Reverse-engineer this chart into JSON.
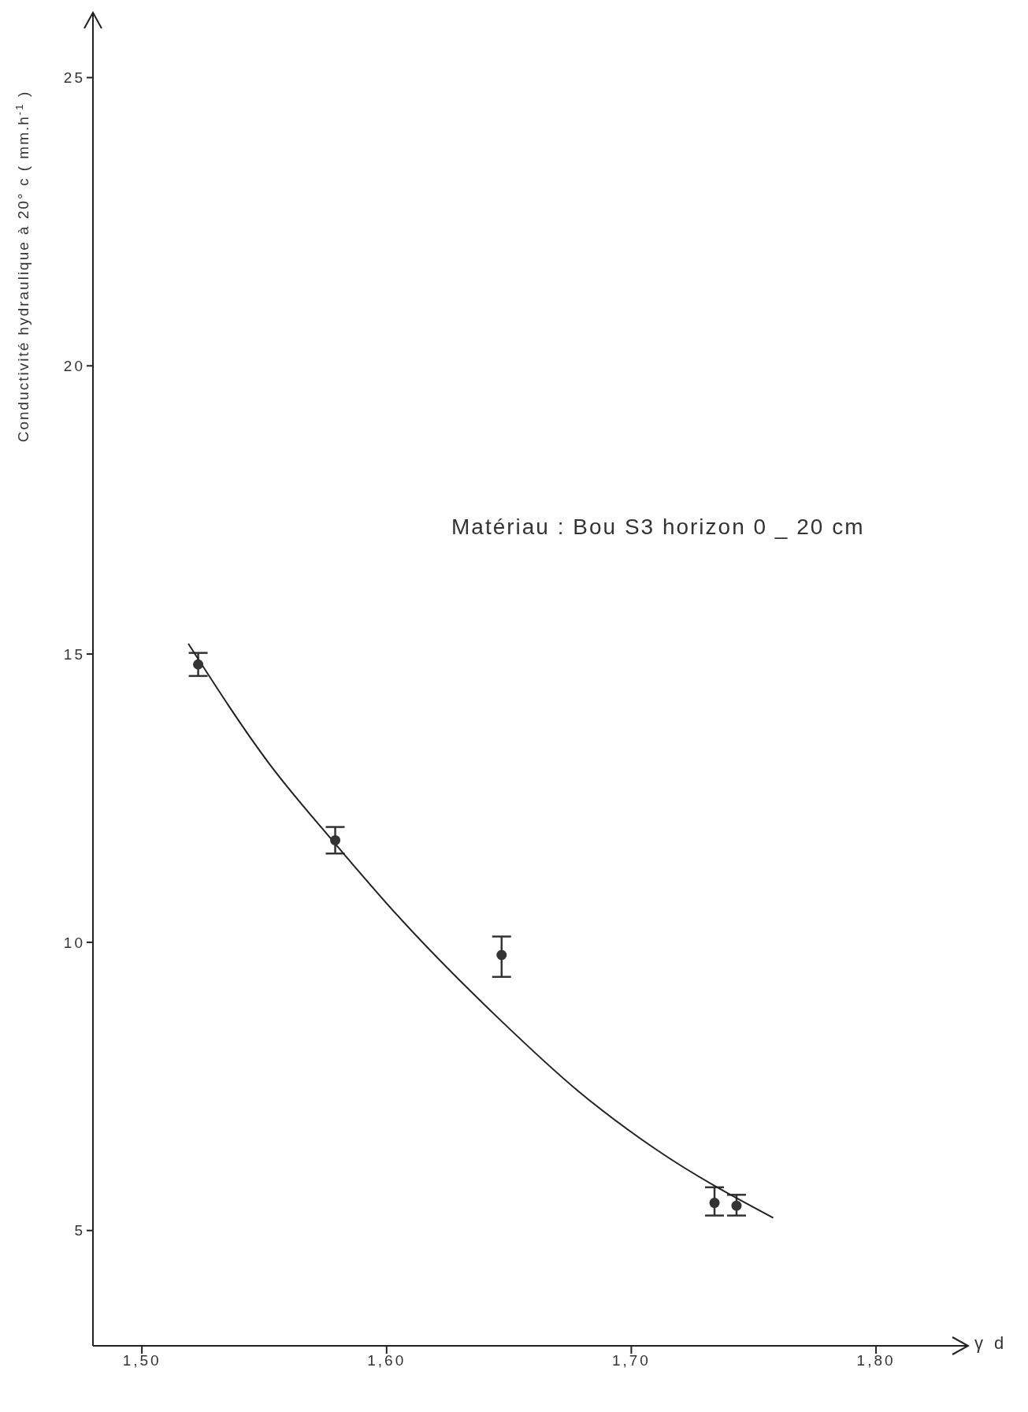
{
  "chart_data": {
    "type": "scatter",
    "ylabel": "Conductivité hydraulique à 20° c ( mm.h$^{-1}$ )",
    "xlabel": "γ d",
    "annotations": [
      "Matériau : Bou S3 horizon 0 _ 20 cm"
    ],
    "xlim": [
      1.48,
      1.837
    ],
    "ylim": [
      3,
      26.1
    ],
    "xticks": [
      {
        "value": 1.5,
        "label": "1,50"
      },
      {
        "value": 1.6,
        "label": "1,60"
      },
      {
        "value": 1.7,
        "label": "1,70"
      },
      {
        "value": 1.8,
        "label": "1,80"
      }
    ],
    "yticks": [
      5,
      10,
      15,
      20,
      25
    ],
    "grid": false,
    "legend": false,
    "marker": "circle",
    "series": [
      {
        "color": "#333333",
        "x": [
          1.523,
          1.579,
          1.647,
          1.734,
          1.743
        ],
        "values": [
          14.82,
          11.77,
          9.78,
          5.48,
          5.43
        ],
        "errors": [
          0.2,
          0.23,
          [
            9.4,
            10.1
          ],
          [
            5.26,
            5.75
          ],
          [
            5.26,
            5.62
          ]
        ]
      },
      {
        "type": "line",
        "color": "#222222",
        "marker": "none",
        "line_style": "solid",
        "x": [
          1.519,
          1.552,
          1.579,
          1.605,
          1.647,
          1.678,
          1.71,
          1.758
        ],
        "values": [
          15.18,
          13.1,
          11.71,
          10.44,
          8.63,
          7.43,
          6.41,
          5.22
        ]
      }
    ]
  }
}
